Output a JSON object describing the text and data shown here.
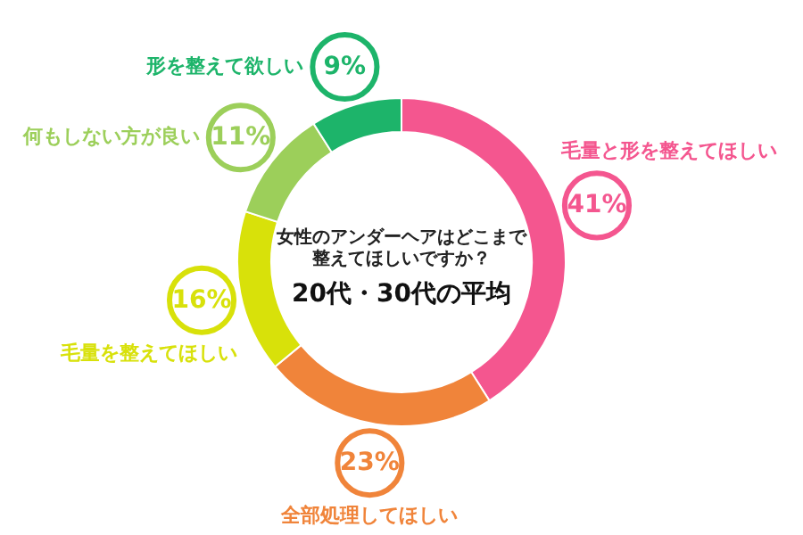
{
  "chart_data": {
    "type": "donut",
    "title": "女性のアンダーヘアはどこまで整えてほしいですか？",
    "subtitle": "20代・30代の平均",
    "categories": [
      "毛量と形を整えてほしい",
      "全部処理してほしい",
      "毛量を整えてほしい",
      "何もしない方が良い",
      "形を整えて欲しい"
    ],
    "values": [
      41,
      23,
      16,
      11,
      9
    ],
    "value_labels": [
      "41%",
      "23%",
      "16%",
      "11%",
      "9%"
    ],
    "colors": [
      "#f4568f",
      "#f0843a",
      "#d8e10a",
      "#9ccf5a",
      "#1db46a"
    ]
  }
}
